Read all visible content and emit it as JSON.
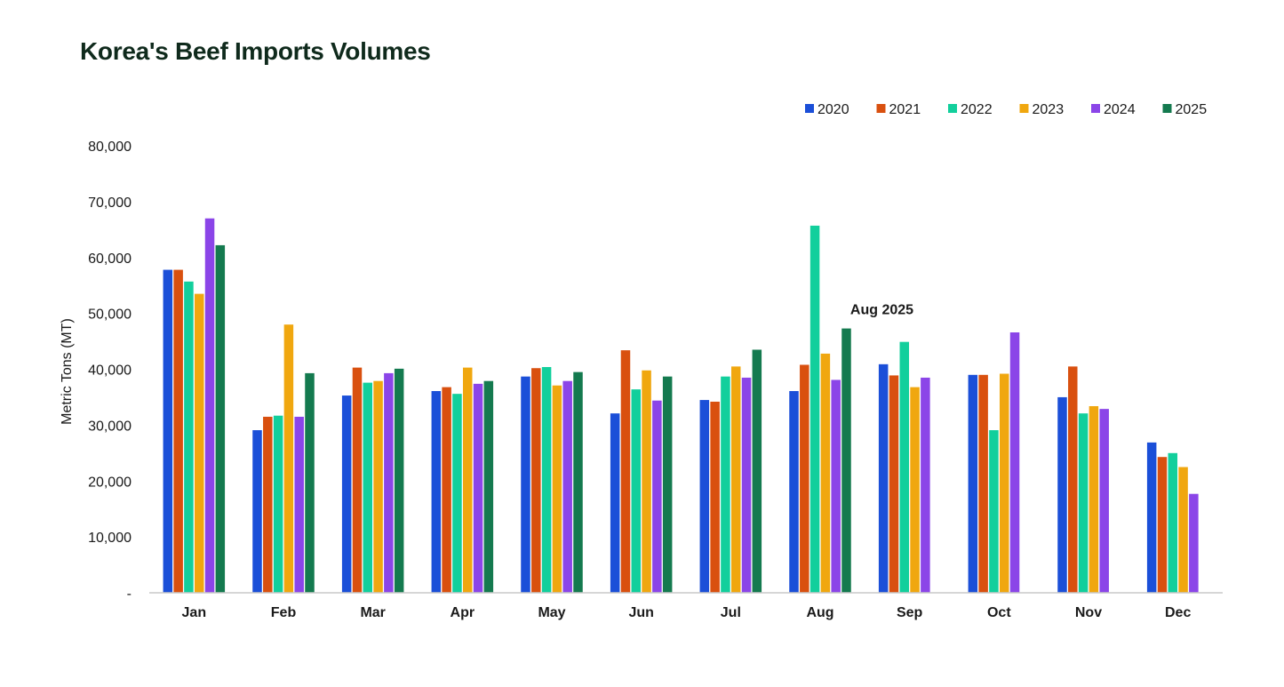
{
  "chart_data": {
    "type": "bar",
    "title": "Korea's Beef Imports Volumes",
    "xlabel": "",
    "ylabel": "Metric Tons (MT)",
    "ylim": [
      0,
      80000
    ],
    "yticks": [
      0,
      10000,
      20000,
      30000,
      40000,
      50000,
      60000,
      70000,
      80000
    ],
    "ytick_labels": [
      "-",
      "10,000",
      "20,000",
      "30,000",
      "40,000",
      "50,000",
      "60,000",
      "70,000",
      "80,000"
    ],
    "categories": [
      "Jan",
      "Feb",
      "Mar",
      "Apr",
      "May",
      "Jun",
      "Jul",
      "Aug",
      "Sep",
      "Oct",
      "Nov",
      "Dec"
    ],
    "legend_position": "top-right",
    "grid": false,
    "series": [
      {
        "name": "2020",
        "color": "#1b4fd8",
        "values": [
          57800,
          29100,
          35300,
          36100,
          38700,
          32100,
          34500,
          36100,
          40900,
          39000,
          35000,
          26900
        ]
      },
      {
        "name": "2021",
        "color": "#d9500f",
        "values": [
          57800,
          31500,
          40300,
          36800,
          40200,
          43400,
          34200,
          40800,
          38900,
          39000,
          40500,
          24300
        ]
      },
      {
        "name": "2022",
        "color": "#12cf9c",
        "values": [
          55700,
          31700,
          37600,
          35600,
          40400,
          36400,
          38700,
          65700,
          44900,
          29100,
          32100,
          25000
        ]
      },
      {
        "name": "2023",
        "color": "#f0a70f",
        "values": [
          53500,
          48000,
          37900,
          40300,
          37100,
          39800,
          40500,
          42800,
          36800,
          39200,
          33400,
          22500
        ]
      },
      {
        "name": "2024",
        "color": "#8b45e8",
        "values": [
          67000,
          31500,
          39300,
          37400,
          37900,
          34400,
          38500,
          38100,
          38500,
          46600,
          32900,
          17700
        ]
      },
      {
        "name": "2025",
        "color": "#147a4f",
        "values": [
          62200,
          39300,
          40100,
          37900,
          39500,
          38700,
          43500,
          47300,
          null,
          null,
          null,
          null
        ]
      }
    ],
    "annotations": [
      {
        "text": "Aug 2025",
        "category": "Aug",
        "series": "2025"
      }
    ]
  }
}
